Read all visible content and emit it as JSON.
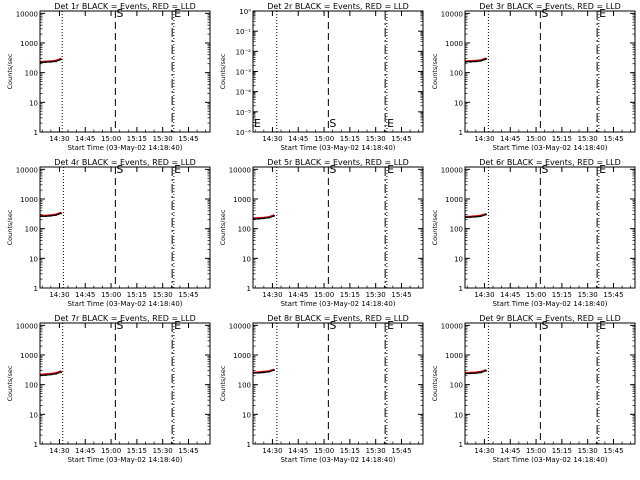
{
  "figure": {
    "x_ticks": [
      "14:30",
      "14:45",
      "15:00",
      "15:15",
      "15:30",
      "15:45"
    ],
    "x_tick_minutes": [
      30,
      45,
      60,
      75,
      90,
      105
    ],
    "xlim_minutes": [
      18.7,
      117.5
    ],
    "y_ticks_log": [
      "1",
      "10",
      "100",
      "1000",
      "10000"
    ],
    "y_ticks_tiny": [
      "10⁻⁶",
      "10⁻⁵",
      "10⁻⁴",
      "10⁻³",
      "10⁻²",
      "10⁻¹",
      "10⁰"
    ],
    "colors": {
      "events": "#000000",
      "lld": "#cc0000",
      "axes": "#000000"
    }
  },
  "chart_data": [
    {
      "type": "line",
      "title": "Det 1r BLACK = Events, RED = LLD",
      "xlabel": "Start Time (03-May-02 14:18:40)",
      "ylabel": "Counts/sec",
      "yscale": "log",
      "ylim": [
        1,
        12000
      ],
      "markers": {
        "S": 62.5,
        "E": 95.5
      },
      "x_minutes": [
        19,
        22,
        25,
        28,
        31
      ],
      "series": [
        {
          "name": "Events",
          "values": [
            220,
            225,
            230,
            240,
            280
          ]
        },
        {
          "name": "LLD",
          "values": [
            235,
            240,
            248,
            258,
            300
          ]
        }
      ],
      "dotted_lines": [
        31.6
      ]
    },
    {
      "type": "line",
      "title": "Det 2r BLACK = Events, RED = LLD",
      "xlabel": "Start Time (03-May-02 14:18:40)",
      "ylabel": "Counts/sec",
      "yscale": "log",
      "ylim": [
        1e-06,
        1
      ],
      "markers": {
        "S": 62.5,
        "E": 95.5
      },
      "x_minutes": [],
      "series": [
        {
          "name": "Events",
          "values": []
        },
        {
          "name": "LLD",
          "values": []
        }
      ],
      "dotted_lines": [
        32.5
      ]
    },
    {
      "type": "line",
      "title": "Det 3r BLACK = Events, RED = LLD",
      "xlabel": "Start Time (03-May-02 14:18:40)",
      "ylabel": "Counts/sec",
      "yscale": "log",
      "ylim": [
        1,
        12000
      ],
      "markers": {
        "S": 62.5,
        "E": 95.5
      },
      "x_minutes": [
        19,
        22,
        25,
        28,
        31
      ],
      "series": [
        {
          "name": "Events",
          "values": [
            230,
            232,
            238,
            250,
            290
          ]
        },
        {
          "name": "LLD",
          "values": [
            245,
            250,
            255,
            268,
            310
          ]
        }
      ],
      "dotted_lines": [
        32.3
      ]
    },
    {
      "type": "line",
      "title": "Det 4r BLACK = Events, RED = LLD",
      "xlabel": "Start Time (03-May-02 14:18:40)",
      "ylabel": "Counts/sec",
      "yscale": "log",
      "ylim": [
        1,
        12000
      ],
      "markers": {
        "S": 62.5,
        "E": 95.5
      },
      "x_minutes": [
        19,
        22,
        25,
        28,
        31
      ],
      "series": [
        {
          "name": "Events",
          "values": [
            260,
            262,
            270,
            285,
            330
          ]
        },
        {
          "name": "LLD",
          "values": [
            275,
            280,
            290,
            305,
            350
          ]
        }
      ],
      "dotted_lines": [
        32.3
      ]
    },
    {
      "type": "line",
      "title": "Det 5r BLACK = Events, RED = LLD",
      "xlabel": "Start Time (03-May-02 14:18:40)",
      "ylabel": "Counts/sec",
      "yscale": "log",
      "ylim": [
        1,
        12000
      ],
      "markers": {
        "S": 62.5,
        "E": 95.5
      },
      "x_minutes": [
        19,
        22,
        25,
        28,
        31
      ],
      "series": [
        {
          "name": "Events",
          "values": [
            210,
            215,
            222,
            235,
            270
          ]
        },
        {
          "name": "LLD",
          "values": [
            225,
            230,
            238,
            250,
            290
          ]
        }
      ],
      "dotted_lines": [
        32.5
      ]
    },
    {
      "type": "line",
      "title": "Det 6r BLACK = Events, RED = LLD",
      "xlabel": "Start Time (03-May-02 14:18:40)",
      "ylabel": "Counts/sec",
      "yscale": "log",
      "ylim": [
        1,
        12000
      ],
      "markers": {
        "S": 62.5,
        "E": 95.5
      },
      "x_minutes": [
        19,
        22,
        25,
        28,
        31
      ],
      "series": [
        {
          "name": "Events",
          "values": [
            240,
            245,
            250,
            262,
            300
          ]
        },
        {
          "name": "LLD",
          "values": [
            255,
            260,
            268,
            280,
            320
          ]
        }
      ],
      "dotted_lines": [
        32.3
      ]
    },
    {
      "type": "line",
      "title": "Det 7r BLACK = Events, RED = LLD",
      "xlabel": "Start Time (03-May-02 14:18:40)",
      "ylabel": "Counts/sec",
      "yscale": "log",
      "ylim": [
        1,
        12000
      ],
      "markers": {
        "S": 62.5,
        "E": 95.5
      },
      "x_minutes": [
        19,
        22,
        25,
        28,
        31
      ],
      "series": [
        {
          "name": "Events",
          "values": [
            205,
            210,
            218,
            232,
            265
          ]
        },
        {
          "name": "LLD",
          "values": [
            220,
            228,
            236,
            250,
            290
          ]
        }
      ],
      "dotted_lines": [
        31.9
      ]
    },
    {
      "type": "line",
      "title": "Det 8r BLACK = Events, RED = LLD",
      "xlabel": "Start Time (03-May-02 14:18:40)",
      "ylabel": "Counts/sec",
      "yscale": "log",
      "ylim": [
        1,
        12000
      ],
      "markers": {
        "S": 62.5,
        "E": 95.5
      },
      "x_minutes": [
        19,
        22,
        25,
        28,
        31
      ],
      "series": [
        {
          "name": "Events",
          "values": [
            245,
            250,
            258,
            272,
            310
          ]
        },
        {
          "name": "LLD",
          "values": [
            260,
            265,
            275,
            290,
            330
          ]
        }
      ],
      "dotted_lines": [
        32.6
      ]
    },
    {
      "type": "line",
      "title": "Det 9r BLACK = Events, RED = LLD",
      "xlabel": "Start Time (03-May-02 14:18:40)",
      "ylabel": "Counts/sec",
      "yscale": "log",
      "ylim": [
        1,
        12000
      ],
      "markers": {
        "S": 62.5,
        "E": 95.5
      },
      "x_minutes": [
        19,
        22,
        25,
        28,
        31
      ],
      "series": [
        {
          "name": "Events",
          "values": [
            235,
            240,
            246,
            258,
            295
          ]
        },
        {
          "name": "LLD",
          "values": [
            250,
            255,
            262,
            275,
            315
          ]
        }
      ],
      "dotted_lines": [
        32.3
      ]
    }
  ]
}
